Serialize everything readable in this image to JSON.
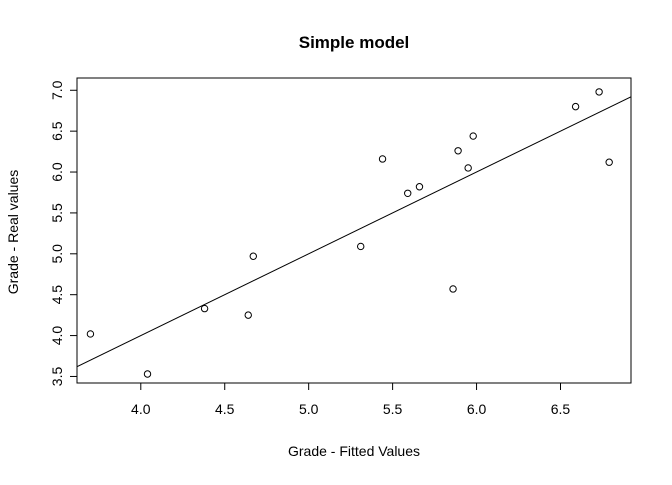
{
  "chart_data": {
    "type": "scatter",
    "title": "Simple model",
    "xlabel": "Grade - Fitted Values",
    "ylabel": "Grade - Real values",
    "xlim": [
      3.62,
      6.92
    ],
    "ylim": [
      3.42,
      7.15
    ],
    "x_ticks": [
      "4.0",
      "4.5",
      "5.0",
      "5.5",
      "6.0",
      "6.5"
    ],
    "y_ticks": [
      "3.5",
      "4.0",
      "4.5",
      "5.0",
      "5.5",
      "6.0",
      "6.5",
      "7.0"
    ],
    "grid": false,
    "legend": false,
    "points": [
      {
        "x": 3.7,
        "y": 4.02
      },
      {
        "x": 4.04,
        "y": 3.53
      },
      {
        "x": 4.38,
        "y": 4.33
      },
      {
        "x": 4.64,
        "y": 4.25
      },
      {
        "x": 4.67,
        "y": 4.97
      },
      {
        "x": 5.31,
        "y": 5.09
      },
      {
        "x": 5.44,
        "y": 6.16
      },
      {
        "x": 5.59,
        "y": 5.74
      },
      {
        "x": 5.66,
        "y": 5.82
      },
      {
        "x": 5.86,
        "y": 4.57
      },
      {
        "x": 5.89,
        "y": 6.26
      },
      {
        "x": 5.95,
        "y": 6.05
      },
      {
        "x": 5.98,
        "y": 6.44
      },
      {
        "x": 6.59,
        "y": 6.8
      },
      {
        "x": 6.73,
        "y": 6.98
      },
      {
        "x": 6.79,
        "y": 6.12
      }
    ],
    "fit_line": {
      "intercept": 0.0,
      "slope": 1.0
    }
  }
}
